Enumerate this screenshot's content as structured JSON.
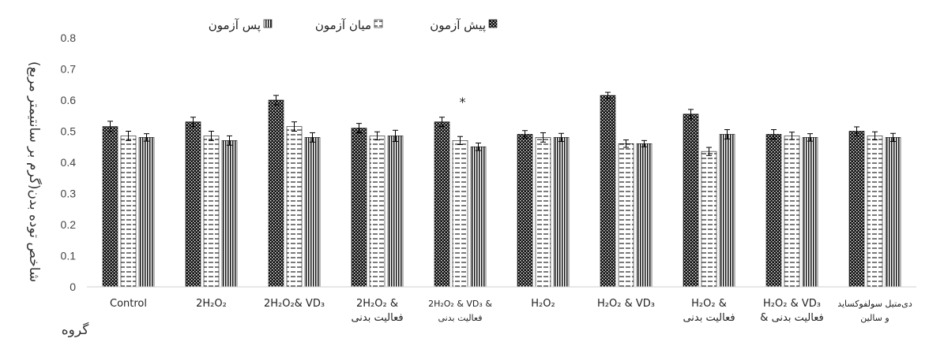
{
  "chart_data": {
    "type": "bar",
    "title": "",
    "xlabel": "گروه",
    "ylabel": "شاخص توده بدن(گرم بر سانتیمتر مربع)",
    "ylim": [
      0,
      0.8
    ],
    "yticks": [
      "0",
      "0.1",
      "0.2",
      "0.3",
      "0.4",
      "0.5",
      "0.6",
      "0.7",
      "0.8"
    ],
    "grid": false,
    "legend_position": "top",
    "categories": [
      [
        "Control"
      ],
      [
        "2H₂O₂"
      ],
      [
        "2H₂O₂& VD₃"
      ],
      [
        "2H₂O₂ &",
        "فعالیت بدنی"
      ],
      [
        "2H₂O₂ & VD₃ &",
        "فعالیت بدنی"
      ],
      [
        "H₂O₂"
      ],
      [
        "H₂O₂ & VD₃"
      ],
      [
        "H₂O₂ &",
        "فعالیت بدنی"
      ],
      [
        "H₂O₂ & VD₃",
        "& فعالیت بدنی"
      ],
      [
        "دی‌متیل سولفوکساید",
        "و سالین"
      ]
    ],
    "series": [
      {
        "name": "پیش آزمون",
        "pattern": "dots",
        "values": [
          0.515,
          0.53,
          0.6,
          0.51,
          0.53,
          0.49,
          0.615,
          0.555,
          0.49,
          0.5
        ],
        "errors": [
          0.017,
          0.015,
          0.015,
          0.015,
          0.015,
          0.012,
          0.01,
          0.015,
          0.015,
          0.014
        ]
      },
      {
        "name": "میان آزمون",
        "pattern": "dashes",
        "values": [
          0.485,
          0.485,
          0.515,
          0.485,
          0.47,
          0.48,
          0.46,
          0.435,
          0.485,
          0.485
        ],
        "errors": [
          0.015,
          0.015,
          0.015,
          0.013,
          0.013,
          0.015,
          0.012,
          0.013,
          0.012,
          0.013
        ]
      },
      {
        "name": "پس آزمون",
        "pattern": "vlines",
        "values": [
          0.48,
          0.47,
          0.48,
          0.485,
          0.45,
          0.48,
          0.46,
          0.49,
          0.48,
          0.48
        ],
        "errors": [
          0.012,
          0.015,
          0.015,
          0.018,
          0.012,
          0.013,
          0.01,
          0.015,
          0.012,
          0.013
        ]
      }
    ],
    "annotations": [
      {
        "category_index": 4,
        "text": "*"
      }
    ]
  }
}
